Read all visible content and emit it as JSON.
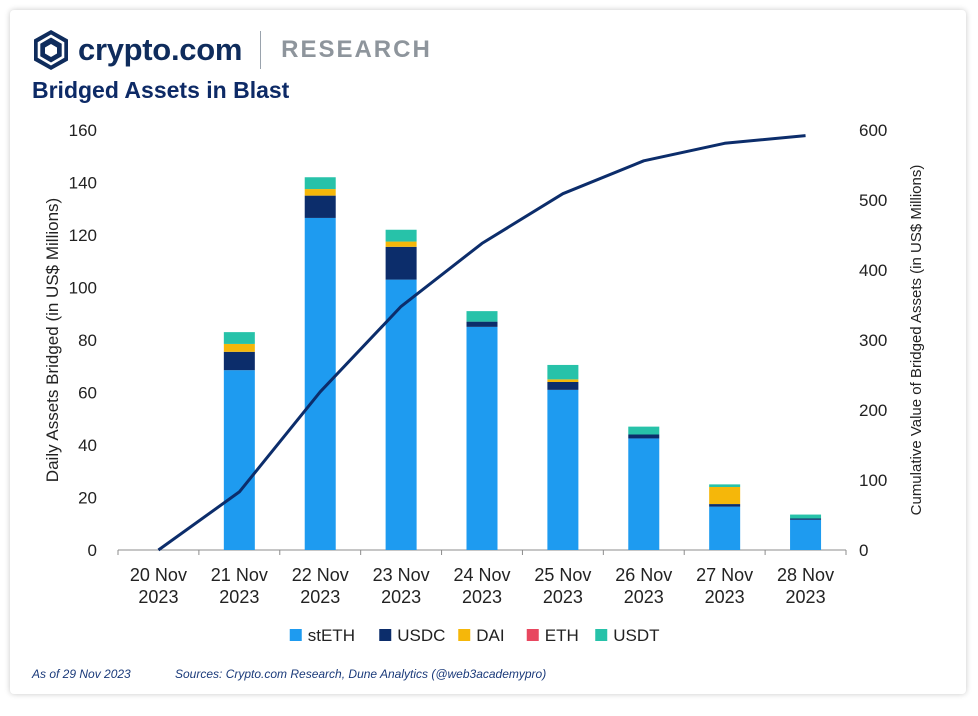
{
  "brand": {
    "name": "crypto.com",
    "section": "RESEARCH"
  },
  "title": "Bridged Assets in Blast",
  "footnote": {
    "as_of": "As of 29 Nov 2023",
    "sources": "Sources: Crypto.com Research, Dune Analytics (@web3academypro)"
  },
  "colors": {
    "stETH": "#1e9bf0",
    "USDC": "#0c2d6b",
    "DAI": "#f5b70a",
    "ETH": "#e8475f",
    "USDT": "#27c2a9",
    "line": "#0c2d6b"
  },
  "chart_data": {
    "type": "bar",
    "stacked": true,
    "categories": [
      [
        "20 Nov",
        "2023"
      ],
      [
        "21 Nov",
        "2023"
      ],
      [
        "22 Nov",
        "2023"
      ],
      [
        "23 Nov",
        "2023"
      ],
      [
        "24 Nov",
        "2023"
      ],
      [
        "25 Nov",
        "2023"
      ],
      [
        "26 Nov",
        "2023"
      ],
      [
        "27 Nov",
        "2023"
      ],
      [
        "28 Nov",
        "2023"
      ]
    ],
    "series": [
      {
        "name": "stETH",
        "values": [
          0,
          68.5,
          126.5,
          103,
          85,
          61,
          42.5,
          16.5,
          11.5
        ]
      },
      {
        "name": "USDC",
        "values": [
          0,
          7,
          8.5,
          12.5,
          2,
          3,
          1.5,
          1,
          0.5
        ]
      },
      {
        "name": "DAI",
        "values": [
          0,
          3,
          2.5,
          2,
          0,
          1,
          0,
          6.5,
          0
        ]
      },
      {
        "name": "ETH",
        "values": [
          0,
          0,
          0,
          0,
          0,
          0,
          0,
          0,
          0
        ]
      },
      {
        "name": "USDT",
        "values": [
          0,
          4.5,
          4.5,
          4.5,
          4,
          5.5,
          3,
          1,
          1.5
        ]
      }
    ],
    "line": {
      "name": "Cumulative Value of Bridged Assets",
      "axis": "right",
      "values": [
        0,
        83,
        226,
        348,
        438,
        509,
        556,
        581,
        592
      ]
    },
    "ylabel": "Daily Assets Bridged (in US$ Millions)",
    "y2label": "Cumulative Value of Bridged Assets (in US$ Millions)",
    "ylim": [
      0,
      160
    ],
    "y2lim": [
      0,
      600
    ],
    "yticks": [
      0,
      20,
      40,
      60,
      80,
      100,
      120,
      140,
      160
    ],
    "y2ticks": [
      0,
      100,
      200,
      300,
      400,
      500,
      600
    ],
    "legend": [
      "stETH",
      "USDC",
      "DAI",
      "ETH",
      "USDT"
    ],
    "legend_position": "bottom",
    "grid": false
  }
}
